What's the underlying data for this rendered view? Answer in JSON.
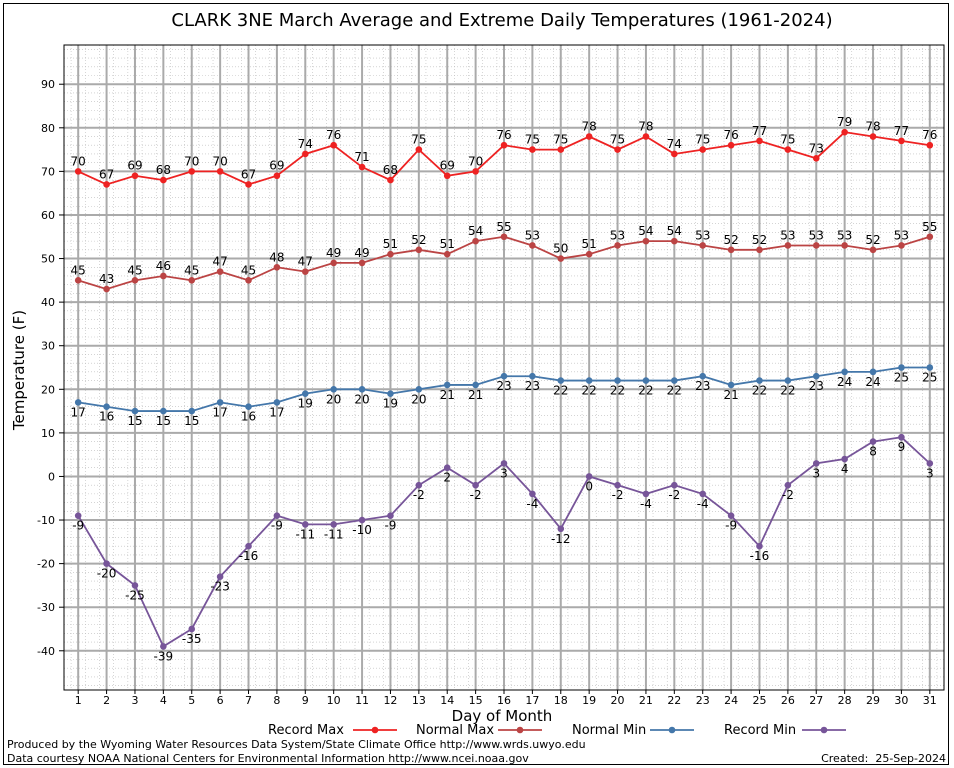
{
  "chart_data": {
    "type": "line",
    "title": "CLARK 3NE March Average and Extreme Daily Temperatures (1961-2024)",
    "xlabel": "Day of Month",
    "ylabel": "Temperature (F)",
    "x": [
      1,
      2,
      3,
      4,
      5,
      6,
      7,
      8,
      9,
      10,
      11,
      12,
      13,
      14,
      15,
      16,
      17,
      18,
      19,
      20,
      21,
      22,
      23,
      24,
      25,
      26,
      27,
      28,
      29,
      30,
      31
    ],
    "xlim": [
      0.5,
      31.5
    ],
    "ylim": [
      -49,
      99
    ],
    "yticks": [
      -40,
      -30,
      -20,
      -10,
      0,
      10,
      20,
      30,
      40,
      50,
      60,
      70,
      80,
      90
    ],
    "grid": true,
    "legend_position": "bottom",
    "series": [
      {
        "name": "Record Max",
        "color": "#ee2222",
        "values": [
          70,
          67,
          69,
          68,
          70,
          70,
          67,
          69,
          74,
          76,
          71,
          68,
          75,
          69,
          70,
          76,
          75,
          75,
          78,
          75,
          78,
          74,
          75,
          76,
          77,
          75,
          73,
          79,
          78,
          77,
          76
        ]
      },
      {
        "name": "Normal Max",
        "color": "#bb4444",
        "values": [
          45,
          43,
          45,
          46,
          45,
          47,
          45,
          48,
          47,
          49,
          49,
          51,
          52,
          51,
          54,
          55,
          53,
          50,
          51,
          53,
          54,
          54,
          53,
          52,
          52,
          53,
          53,
          53,
          52,
          53,
          55
        ]
      },
      {
        "name": "Normal Min",
        "color": "#4477aa",
        "values": [
          17,
          16,
          15,
          15,
          15,
          17,
          16,
          17,
          19,
          20,
          20,
          19,
          20,
          21,
          21,
          23,
          23,
          22,
          22,
          22,
          22,
          22,
          23,
          21,
          22,
          22,
          23,
          24,
          24,
          25,
          25
        ]
      },
      {
        "name": "Record Min",
        "color": "#775599",
        "values": [
          -9,
          -20,
          -25,
          -39,
          -35,
          -23,
          -16,
          -9,
          -11,
          -11,
          -10,
          -9,
          -2,
          2,
          -2,
          3,
          -4,
          -12,
          0,
          -2,
          -4,
          -2,
          -4,
          -9,
          -16,
          -2,
          3,
          4,
          8,
          9,
          3
        ]
      }
    ]
  },
  "footer": {
    "produced_by": "Produced by the Wyoming Water Resources Data System/State Climate Office http://www.wrds.uwyo.edu",
    "courtesy": "Data courtesy NOAA National Centers for Environmental Information http://www.ncei.noaa.gov",
    "created": "Created:  25-Sep-2024"
  }
}
